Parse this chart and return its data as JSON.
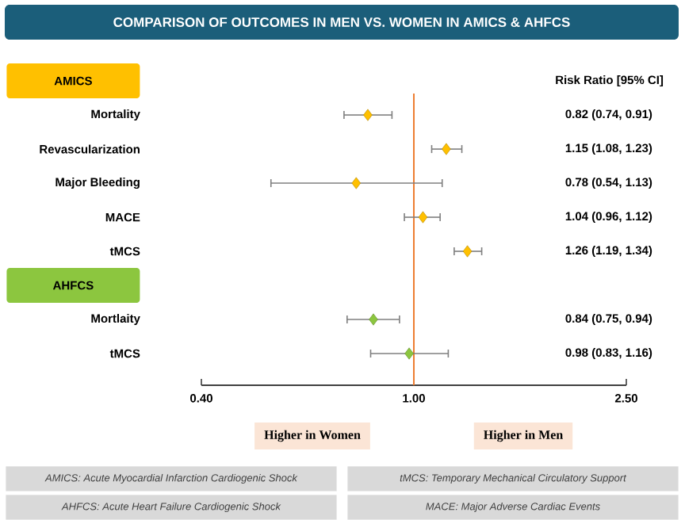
{
  "chart_data": {
    "type": "scatter",
    "orientation": "horizontal",
    "title": "COMPARISON OF OUTCOMES IN MEN VS. WOMEN IN AMICS & AHFCS",
    "categories": [
      null,
      "Mortality",
      "Revascularization",
      "Major Bleeding",
      "MACE",
      "tMCS",
      null,
      "Mortlaity",
      "tMCS"
    ],
    "series": [
      {
        "name": "AMICS",
        "color": "#ffc000",
        "values": [
          null,
          0.82,
          1.15,
          0.78,
          1.04,
          1.26,
          null,
          null,
          null
        ],
        "errors": [
          null,
          [
            0.74,
            0.91
          ],
          [
            1.08,
            1.23
          ],
          [
            0.54,
            1.13
          ],
          [
            0.96,
            1.12
          ],
          [
            1.19,
            1.34
          ],
          null,
          null,
          null
        ]
      },
      {
        "name": "AHFCS",
        "color": "#8cc63f",
        "values": [
          null,
          null,
          null,
          null,
          null,
          null,
          null,
          0.84,
          0.98
        ],
        "errors": [
          null,
          null,
          null,
          null,
          null,
          null,
          null,
          [
            0.75,
            0.94
          ],
          [
            0.83,
            1.16
          ]
        ]
      }
    ],
    "log": "x",
    "xlim": [
      0.4,
      2.5
    ],
    "xticks": [
      {
        "value": 0.4,
        "label": "0.40"
      },
      {
        "value": 1,
        "label": "1.00"
      },
      {
        "value": 2.5,
        "label": "2.50"
      }
    ],
    "marker": "diamond",
    "ref_lines": [
      {
        "axis": "x",
        "value": 1,
        "color": "#ed7d31"
      }
    ],
    "annotations": [
      "Risk Ratio [95% CI]",
      "0.82 (0.74, 0.91)",
      "1.15 (1.08, 1.23)",
      "0.78 (0.54, 1.13)",
      "1.04 (0.96, 1.12)",
      "1.26 (1.19, 1.34)",
      "0.84 (0.75, 0.94)",
      "0.98 (0.83, 1.16)",
      "Higher in Women",
      "Higher in Men",
      "AMICS: Acute Myocardial Infarction Cardiogenic Shock",
      "tMCS: Temporary Mechanical Circulatory Support",
      "AHFCS: Acute Heart Failure Cardiogenic Shock",
      "MACE: Major Adverse Cardiac Events"
    ]
  }
}
